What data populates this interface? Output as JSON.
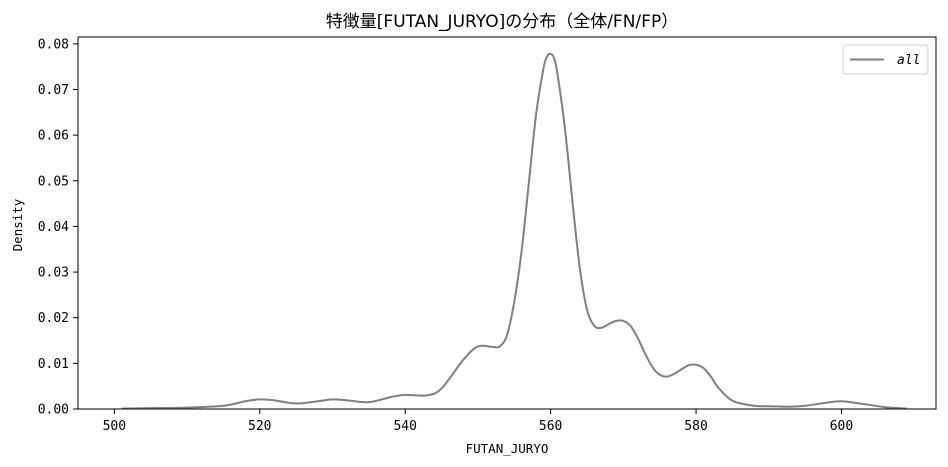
{
  "chart_data": {
    "type": "line",
    "title": "特徴量[FUTAN_JURYO]の分布（全体/FN/FP）",
    "xlabel": "FUTAN_JURYO",
    "ylabel": "Density",
    "xlim": [
      495,
      613
    ],
    "ylim": [
      0,
      0.0815
    ],
    "xticks": [
      500,
      520,
      540,
      560,
      580,
      600
    ],
    "xtick_labels": [
      "500",
      "520",
      "540",
      "560",
      "580",
      "600"
    ],
    "yticks": [
      0,
      0.01,
      0.02,
      0.03,
      0.04,
      0.05,
      0.06,
      0.07,
      0.08
    ],
    "ytick_labels": [
      "0.00",
      "0.01",
      "0.02",
      "0.03",
      "0.04",
      "0.05",
      "0.06",
      "0.07",
      "0.08"
    ],
    "grid": false,
    "legend_position": "top-right",
    "series": [
      {
        "name": "all",
        "color": "#808080",
        "x": [
          501,
          505,
          510,
          515,
          518,
          520,
          522,
          525,
          528,
          530,
          532,
          535,
          538,
          540,
          543,
          545,
          548,
          550,
          552,
          553,
          554,
          555,
          556,
          557,
          558,
          559,
          559.5,
          560,
          560.5,
          561,
          562,
          563,
          564,
          565,
          566,
          567,
          568,
          569,
          570,
          571,
          572,
          573,
          574,
          575,
          576,
          577,
          578,
          579,
          580,
          581,
          582,
          583,
          585,
          588,
          590,
          593,
          595,
          598,
          600,
          603,
          606,
          609
        ],
        "y": [
          0.0001,
          0.0002,
          0.0003,
          0.0007,
          0.0017,
          0.0021,
          0.0019,
          0.0012,
          0.0017,
          0.0021,
          0.0019,
          0.0015,
          0.0026,
          0.0031,
          0.003,
          0.0045,
          0.0108,
          0.0137,
          0.0136,
          0.0137,
          0.0162,
          0.0235,
          0.0345,
          0.0495,
          0.0645,
          0.0745,
          0.0772,
          0.0778,
          0.0768,
          0.0728,
          0.061,
          0.0455,
          0.031,
          0.0218,
          0.0182,
          0.0178,
          0.0186,
          0.0193,
          0.0193,
          0.0182,
          0.0155,
          0.0121,
          0.0092,
          0.0075,
          0.0071,
          0.0077,
          0.0087,
          0.0096,
          0.0097,
          0.009,
          0.0072,
          0.0048,
          0.0018,
          0.0007,
          0.0006,
          0.0005,
          0.0007,
          0.0014,
          0.0017,
          0.0011,
          0.0004,
          0.0001
        ]
      }
    ]
  }
}
